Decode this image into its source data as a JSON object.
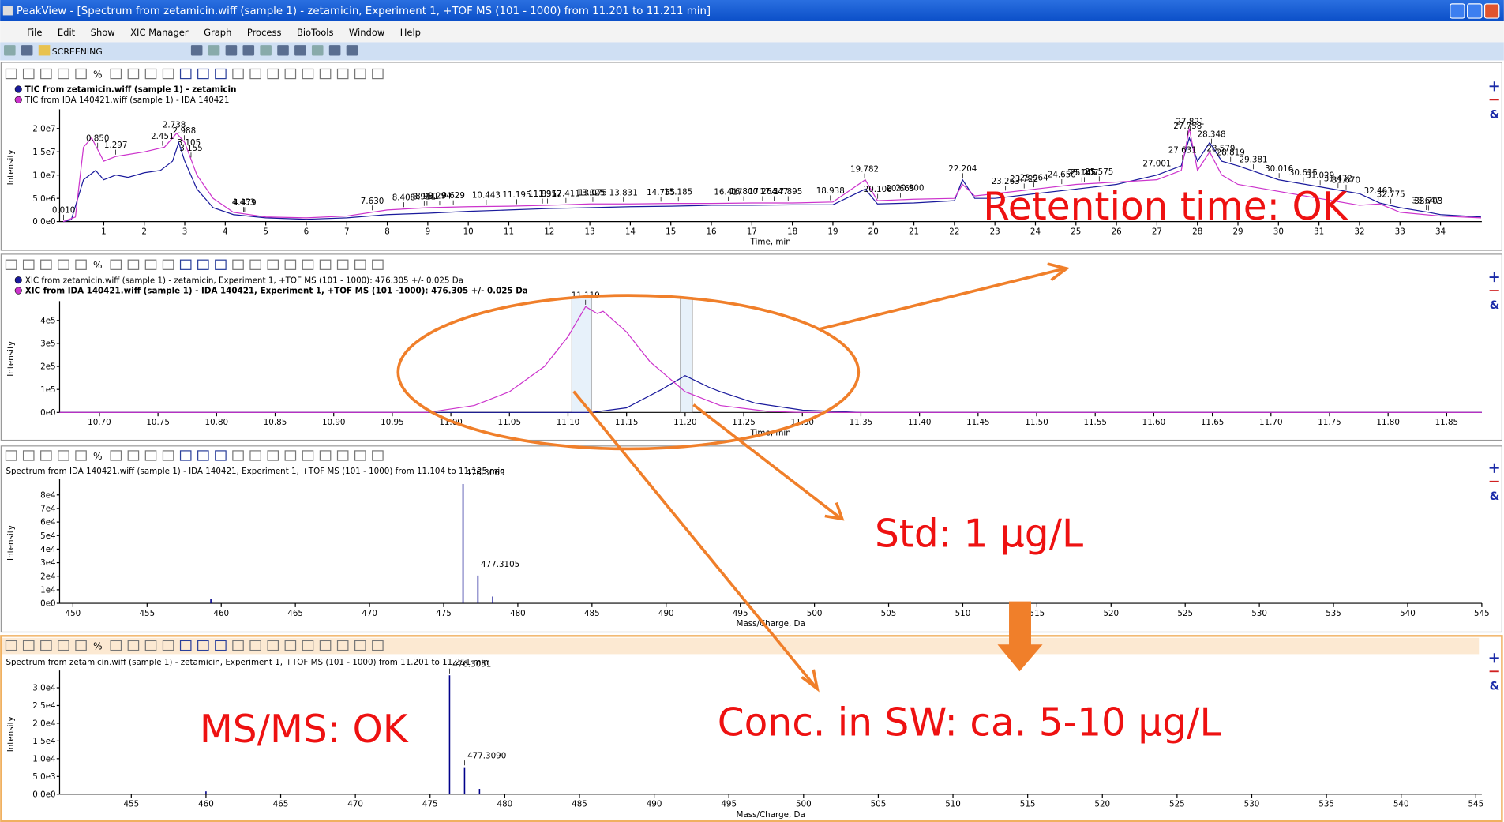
{
  "window": {
    "app_title": "PeakView - [Spectrum from zetamicin.wiff (sample 1) - zetamicin, Experiment 1, +TOF MS (101 - 1000) from 11.201 to 11.211 min]",
    "menu": [
      "File",
      "Edit",
      "Show",
      "XIC Manager",
      "Graph",
      "Process",
      "BioTools",
      "Window",
      "Help"
    ],
    "profile": "SCREENING",
    "panel_tool_text": "%",
    "side_symbol": "&"
  },
  "panels": [
    {
      "type": "line",
      "ylabel": "Intensity",
      "xlabel": "Time, min",
      "xlim": [
        -0.09,
        35.02
      ],
      "ylim": [
        0,
        23300000
      ],
      "yticks": [
        {
          "value": 0,
          "label": "0.0e0"
        },
        {
          "value": 5000000,
          "label": "5.0e6"
        },
        {
          "value": 10000000,
          "label": "1.0e7"
        },
        {
          "value": 15000000,
          "label": "1.5e7"
        },
        {
          "value": 20000000,
          "label": "2.0e7"
        }
      ],
      "xticks": [
        1,
        2,
        3,
        4,
        5,
        6,
        7,
        8,
        9,
        10,
        11,
        12,
        13,
        14,
        15,
        16,
        17,
        18,
        19,
        20,
        21,
        22,
        23,
        24,
        25,
        26,
        27,
        28,
        29,
        30,
        31,
        32,
        33,
        34
      ],
      "series": [
        {
          "name": "TIC from zetamicin.wiff (sample 1) - zetamicin",
          "color": "#1a1a9c",
          "x": [
            0,
            0.2,
            0.5,
            0.8,
            1.0,
            1.3,
            1.6,
            2.0,
            2.4,
            2.7,
            2.85,
            3.0,
            3.3,
            3.7,
            4.2,
            5,
            6,
            7,
            8,
            9,
            10,
            11,
            12,
            13,
            14,
            15,
            16,
            17,
            18,
            19,
            19.8,
            20.1,
            21,
            22,
            22.2,
            22.5,
            23,
            24,
            25,
            26,
            27,
            27.6,
            27.8,
            28.0,
            28.3,
            28.6,
            29,
            30,
            31,
            32,
            32.5,
            33,
            33.7,
            34,
            35
          ],
          "values": [
            0,
            400000.0,
            9000000.0,
            11000000.0,
            9000000.0,
            10000000.0,
            9500000.0,
            10500000.0,
            11000000.0,
            13000000.0,
            17000000.0,
            13000000.0,
            7000000.0,
            3000000.0,
            1500000.0,
            800000.0,
            500000.0,
            800000.0,
            1500000.0,
            1800000.0,
            2200000.0,
            2500000.0,
            2800000.0,
            3000000.0,
            3200000.0,
            3300000.0,
            3500000.0,
            3500000.0,
            3600000.0,
            3600000.0,
            7000000.0,
            3800000.0,
            4000000.0,
            4500000.0,
            9000000.0,
            5000000.0,
            5000000.0,
            6000000.0,
            7000000.0,
            8000000.0,
            10000000.0,
            12000000.0,
            18000000.0,
            13000000.0,
            17000000.0,
            13000000.0,
            12000000.0,
            9000000.0,
            7500000.0,
            6000000.0,
            4000000.0,
            3000000.0,
            2000000.0,
            1500000.0,
            1000000.0
          ]
        },
        {
          "name": "TIC from IDA 140421.wiff (sample 1) - IDA 140421",
          "color": "#cc33cc",
          "x": [
            0,
            0.3,
            0.5,
            0.7,
            1,
            1.3,
            2,
            2.5,
            2.8,
            3,
            3.3,
            3.7,
            4.2,
            5,
            6,
            7,
            8,
            9,
            10,
            11,
            12,
            13,
            14,
            15,
            16,
            17,
            18,
            19,
            19.8,
            20.1,
            21,
            22,
            22.2,
            22.5,
            23,
            24,
            25,
            26,
            27,
            27.6,
            27.8,
            28,
            28.3,
            28.6,
            29,
            30,
            31,
            32,
            32.5,
            33,
            34,
            35
          ],
          "values": [
            0,
            1000000.0,
            16000000.0,
            18000000.0,
            13000000.0,
            14000000.0,
            15000000.0,
            16000000.0,
            19000000.0,
            17000000.0,
            10000000.0,
            5000000.0,
            2000000.0,
            1000000.0,
            800000.0,
            1200000.0,
            2500000.0,
            3000000.0,
            3200000.0,
            3300000.0,
            3500000.0,
            3800000.0,
            3800000.0,
            3900000.0,
            3900000.0,
            4000000.0,
            4000000.0,
            4200000.0,
            9000000.0,
            4500000.0,
            4800000.0,
            5000000.0,
            8000000.0,
            5500000.0,
            6000000.0,
            7000000.0,
            8000000.0,
            8500000.0,
            9000000.0,
            11000000.0,
            20000000.0,
            11000000.0,
            15000000.0,
            10000000.0,
            8000000.0,
            6500000.0,
            5000000.0,
            3500000.0,
            3800000.0,
            2000000.0,
            1200000.0,
            800000.0
          ]
        }
      ],
      "peak_labels": [
        {
          "x": 0.01,
          "label": "0.010"
        },
        {
          "x": 0.85,
          "label": "0.850"
        },
        {
          "x": 1.297,
          "label": "1.297"
        },
        {
          "x": 2.451,
          "label": "2.451"
        },
        {
          "x": 2.738,
          "label": "2.738"
        },
        {
          "x": 2.988,
          "label": "2.988"
        },
        {
          "x": 3.155,
          "label": "3.155"
        },
        {
          "x": 3.105,
          "label": "3.105"
        },
        {
          "x": 4.453,
          "label": "4.453"
        },
        {
          "x": 4.479,
          "label": "4.479"
        },
        {
          "x": 7.63,
          "label": "7.630"
        },
        {
          "x": 8.408,
          "label": "8.408"
        },
        {
          "x": 8.981,
          "label": "8.981"
        },
        {
          "x": 8.911,
          "label": "8.911"
        },
        {
          "x": 9.294,
          "label": "9.294"
        },
        {
          "x": 9.629,
          "label": "9.629"
        },
        {
          "x": 10.443,
          "label": "10.443"
        },
        {
          "x": 11.195,
          "label": "11.195"
        },
        {
          "x": 11.831,
          "label": "11.831"
        },
        {
          "x": 11.957,
          "label": "11.957"
        },
        {
          "x": 12.411,
          "label": "12.411"
        },
        {
          "x": 13.075,
          "label": "13.075"
        },
        {
          "x": 13.025,
          "label": "13.025"
        },
        {
          "x": 13.831,
          "label": "13.831"
        },
        {
          "x": 14.755,
          "label": "14.755"
        },
        {
          "x": 15.185,
          "label": "15.185"
        },
        {
          "x": 16.417,
          "label": "16.417"
        },
        {
          "x": 16.8,
          "label": "16.800"
        },
        {
          "x": 17.264,
          "label": "17.264"
        },
        {
          "x": 17.547,
          "label": "17.547"
        },
        {
          "x": 17.895,
          "label": "17.895"
        },
        {
          "x": 18.938,
          "label": "18.938"
        },
        {
          "x": 19.782,
          "label": "19.782"
        },
        {
          "x": 20.106,
          "label": "20.106"
        },
        {
          "x": 20.665,
          "label": "20.665"
        },
        {
          "x": 20.9,
          "label": "20.900"
        },
        {
          "x": 22.204,
          "label": "22.204"
        },
        {
          "x": 23.263,
          "label": "23.263"
        },
        {
          "x": 23.722,
          "label": "23.722"
        },
        {
          "x": 23.964,
          "label": "23.964"
        },
        {
          "x": 24.65,
          "label": "24.650"
        },
        {
          "x": 25.145,
          "label": "25.145"
        },
        {
          "x": 25.207,
          "label": "25.207"
        },
        {
          "x": 25.575,
          "label": "25.575"
        },
        {
          "x": 27.001,
          "label": "27.001"
        },
        {
          "x": 27.631,
          "label": "27.631"
        },
        {
          "x": 27.758,
          "label": "27.758"
        },
        {
          "x": 27.821,
          "label": "27.821"
        },
        {
          "x": 28.348,
          "label": "28.348"
        },
        {
          "x": 28.579,
          "label": "28.579"
        },
        {
          "x": 28.819,
          "label": "28.819"
        },
        {
          "x": 29.381,
          "label": "29.381"
        },
        {
          "x": 30.016,
          "label": "30.016"
        },
        {
          "x": 30.615,
          "label": "30.615"
        },
        {
          "x": 31.029,
          "label": "31.029"
        },
        {
          "x": 31.472,
          "label": "31.472"
        },
        {
          "x": 31.67,
          "label": "31.670"
        },
        {
          "x": 32.463,
          "label": "32.463"
        },
        {
          "x": 32.775,
          "label": "32.775"
        },
        {
          "x": 33.703,
          "label": "33.703"
        },
        {
          "x": 33.647,
          "label": "33.647"
        }
      ]
    },
    {
      "type": "line",
      "ylabel": "Intensity",
      "xlabel": "Time, min",
      "xlim": [
        10.666,
        11.88
      ],
      "ylim": [
        0,
        467000
      ],
      "yticks": [
        {
          "value": 0,
          "label": "0e0"
        },
        {
          "value": 100000,
          "label": "1e5"
        },
        {
          "value": 200000,
          "label": "2e5"
        },
        {
          "value": 300000,
          "label": "3e5"
        },
        {
          "value": 400000,
          "label": "4e5"
        }
      ],
      "xticks": [
        {
          "value": 10.7,
          "label": "10.70"
        },
        {
          "value": 10.75,
          "label": "10.75"
        },
        {
          "value": 10.8,
          "label": "10.80"
        },
        {
          "value": 10.85,
          "label": "10.85"
        },
        {
          "value": 10.9,
          "label": "10.90"
        },
        {
          "value": 10.95,
          "label": "10.95"
        },
        {
          "value": 11.0,
          "label": "11.00"
        },
        {
          "value": 11.05,
          "label": "11.05"
        },
        {
          "value": 11.1,
          "label": "11.10"
        },
        {
          "value": 11.15,
          "label": "11.15"
        },
        {
          "value": 11.2,
          "label": "11.20"
        },
        {
          "value": 11.25,
          "label": "11.25"
        },
        {
          "value": 11.3,
          "label": "11.30"
        },
        {
          "value": 11.35,
          "label": "11.35"
        },
        {
          "value": 11.4,
          "label": "11.40"
        },
        {
          "value": 11.45,
          "label": "11.45"
        },
        {
          "value": 11.5,
          "label": "11.50"
        },
        {
          "value": 11.55,
          "label": "11.55"
        },
        {
          "value": 11.6,
          "label": "11.60"
        },
        {
          "value": 11.65,
          "label": "11.65"
        },
        {
          "value": 11.7,
          "label": "11.70"
        },
        {
          "value": 11.75,
          "label": "11.75"
        },
        {
          "value": 11.8,
          "label": "11.80"
        },
        {
          "value": 11.85,
          "label": "11.85"
        }
      ],
      "series": [
        {
          "name": "XIC from zetamicin.wiff (sample 1) - zetamicin, Experiment 1, +TOF MS (101 - 1000): 476.305 +/- 0.025 Da",
          "color": "#1a1a9c",
          "x": [
            10.666,
            11.12,
            11.15,
            11.18,
            11.2,
            11.22,
            11.23,
            11.26,
            11.3,
            11.35,
            11.88
          ],
          "values": [
            0,
            0,
            20000,
            100000,
            160000,
            110000,
            90000,
            40000,
            10000,
            0,
            0
          ]
        },
        {
          "name": "XIC from IDA 140421.wiff (sample 1) - IDA 140421, Experiment 1, +TOF MS (101 -1000): 476.305 +/- 0.025 Da",
          "color": "#cc33cc",
          "x": [
            10.666,
            10.98,
            11.02,
            11.05,
            11.08,
            11.1,
            11.115,
            11.125,
            11.13,
            11.15,
            11.17,
            11.2,
            11.23,
            11.27,
            11.3,
            11.88
          ],
          "values": [
            0,
            0,
            30000,
            90000,
            200000,
            330000,
            460000,
            430000,
            440000,
            350000,
            220000,
            90000,
            30000,
            5000,
            0,
            0
          ]
        }
      ],
      "peak_labels": [
        {
          "x": 11.115,
          "label": "11.119"
        }
      ]
    },
    {
      "type": "sticks",
      "title": "Spectrum from IDA 140421.wiff (sample 1) - IDA 140421, Experiment 1, +TOF MS (101 - 1000) from 11.104 to 11.125 min",
      "ylabel": "Intensity",
      "xlabel": "Mass/Charge, Da",
      "xlim": [
        449.1,
        545.0
      ],
      "ylim": [
        0,
        89200
      ],
      "yticks": [
        {
          "value": 0,
          "label": "0e0"
        },
        {
          "value": 10000,
          "label": "1e4"
        },
        {
          "value": 20000,
          "label": "2e4"
        },
        {
          "value": 30000,
          "label": "3e4"
        },
        {
          "value": 40000,
          "label": "4e4"
        },
        {
          "value": 50000,
          "label": "5e4"
        },
        {
          "value": 60000,
          "label": "6e4"
        },
        {
          "value": 70000,
          "label": "7e4"
        },
        {
          "value": 80000,
          "label": "8e4"
        }
      ],
      "xticks": [
        450,
        455,
        460,
        465,
        470,
        475,
        480,
        485,
        490,
        495,
        500,
        505,
        510,
        515,
        520,
        525,
        530,
        535,
        540,
        545
      ],
      "series": [
        {
          "color": "#00008b",
          "x": [
            459.3,
            476.3069,
            477.3105,
            478.31
          ],
          "values": [
            3000,
            88000,
            20500,
            5000
          ]
        }
      ],
      "peak_labels": [
        {
          "x": 476.3069,
          "label": "476.3069"
        },
        {
          "x": 477.3105,
          "label": "477.3105"
        }
      ]
    },
    {
      "type": "sticks",
      "title": "Spectrum from zetamicin.wiff (sample 1) - zetamicin, Experiment 1, +TOF MS (101 - 1000) from 11.201 to 11.211 min",
      "ylabel": "Intensity",
      "xlabel": "Mass/Charge, Da",
      "xlim": [
        450.2,
        545.4
      ],
      "ylim": [
        0,
        33800
      ],
      "yticks": [
        {
          "value": 0,
          "label": "0.0e0"
        },
        {
          "value": 5000,
          "label": "5.0e3"
        },
        {
          "value": 10000,
          "label": "1.0e4"
        },
        {
          "value": 15000,
          "label": "1.5e4"
        },
        {
          "value": 20000,
          "label": "2.0e4"
        },
        {
          "value": 25000,
          "label": "2.5e4"
        },
        {
          "value": 30000,
          "label": "3.0e4"
        }
      ],
      "xticks": [
        455,
        460,
        465,
        470,
        475,
        480,
        485,
        490,
        495,
        500,
        505,
        510,
        515,
        520,
        525,
        530,
        535,
        540,
        545
      ],
      "series": [
        {
          "color": "#00008b",
          "x": [
            460.0,
            476.3051,
            477.309,
            478.31
          ],
          "values": [
            800,
            33500,
            7600,
            1500
          ]
        }
      ],
      "peak_labels": [
        {
          "x": 476.3051,
          "label": "476.3051"
        },
        {
          "x": 477.309,
          "label": "477.3090"
        }
      ]
    }
  ],
  "annotations": {
    "retention": "Retention time: OK",
    "std": "Std: 1 µg/L",
    "conc": "Conc. in SW: ca. 5-10 µg/L",
    "msms": "MS/MS: OK"
  }
}
